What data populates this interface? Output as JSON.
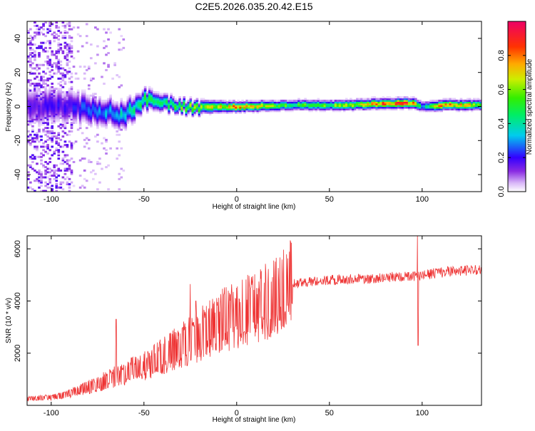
{
  "title": "C2E5.2026.035.20.42.E15",
  "colors": {
    "snr_line": "#ee3333",
    "frame": "#000000",
    "background": "#ffffff"
  },
  "chart_data": [
    {
      "type": "heatmap",
      "name": "spectrogram",
      "xlabel": "Height of straight line (km)",
      "ylabel": "Frequency (Hz)",
      "xlim": [
        -113,
        132
      ],
      "ylim": [
        -50,
        50
      ],
      "x_ticks": [
        -100,
        -50,
        0,
        50,
        100
      ],
      "y_ticks": [
        -40,
        -20,
        0,
        20,
        40
      ],
      "colorbar": {
        "label": "Normalized spectral amplitude",
        "range": [
          0,
          1
        ],
        "ticks": [
          0.0,
          0.2,
          0.4,
          0.6,
          0.8
        ],
        "tick_labels": [
          "0.0",
          "0.2",
          "0.4",
          "0.6",
          "0.8"
        ]
      },
      "ridge": {
        "x": [
          -113,
          -90,
          -70,
          -60,
          -55,
          -50,
          -40,
          -30,
          -20,
          0,
          30,
          60,
          80,
          95,
          100,
          110,
          132
        ],
        "center_hz": [
          0,
          0,
          -3,
          -5,
          0,
          4,
          3,
          0,
          0,
          0,
          1,
          1,
          2,
          2,
          0,
          1,
          1
        ],
        "peak_amplitude": [
          0.15,
          0.2,
          0.3,
          0.35,
          0.4,
          0.45,
          0.5,
          0.55,
          0.6,
          0.75,
          0.5,
          0.6,
          0.85,
          0.9,
          0.3,
          0.8,
          0.6
        ],
        "bandwidth_hz": [
          12,
          10,
          8,
          8,
          7,
          6,
          5,
          4,
          4,
          3,
          3,
          3,
          3,
          3,
          3,
          3,
          3
        ]
      }
    },
    {
      "type": "line",
      "name": "snr",
      "xlabel": "Height of straight line (km)",
      "ylabel": "SNR (10 * v/v)",
      "xlim": [
        -113,
        132
      ],
      "ylim": [
        0,
        6500
      ],
      "x_ticks": [
        -100,
        -50,
        0,
        50,
        100
      ],
      "y_ticks": [
        2000,
        4000,
        6000
      ],
      "series": [
        {
          "name": "SNR",
          "x": [
            -113,
            -105,
            -100,
            -95,
            -90,
            -85,
            -80,
            -75,
            -70,
            -65,
            -60,
            -55,
            -50,
            -45,
            -40,
            -35,
            -30,
            -25,
            -20,
            -15,
            -10,
            -5,
            0,
            5,
            10,
            15,
            20,
            25,
            30,
            35,
            40,
            50,
            60,
            70,
            80,
            90,
            95,
            98,
            100,
            105,
            110,
            120,
            132
          ],
          "y": [
            250,
            300,
            300,
            350,
            450,
            600,
            700,
            800,
            1000,
            1100,
            1200,
            1400,
            1500,
            1700,
            1900,
            2100,
            2300,
            2500,
            2700,
            2950,
            3150,
            3350,
            3450,
            3600,
            3750,
            3950,
            4150,
            4400,
            4650,
            4700,
            4750,
            4800,
            4850,
            4850,
            4900,
            4950,
            4950,
            5000,
            4950,
            5050,
            5100,
            5150,
            5200
          ]
        }
      ],
      "spikes": [
        {
          "x": -65,
          "y": 3300
        },
        {
          "x": -25,
          "y": 4650
        },
        {
          "x": -22,
          "y": 4000
        },
        {
          "x": 30,
          "y": 3900
        },
        {
          "x": 97.5,
          "y": 6500
        },
        {
          "x": 97.8,
          "y": 2300
        }
      ]
    }
  ]
}
